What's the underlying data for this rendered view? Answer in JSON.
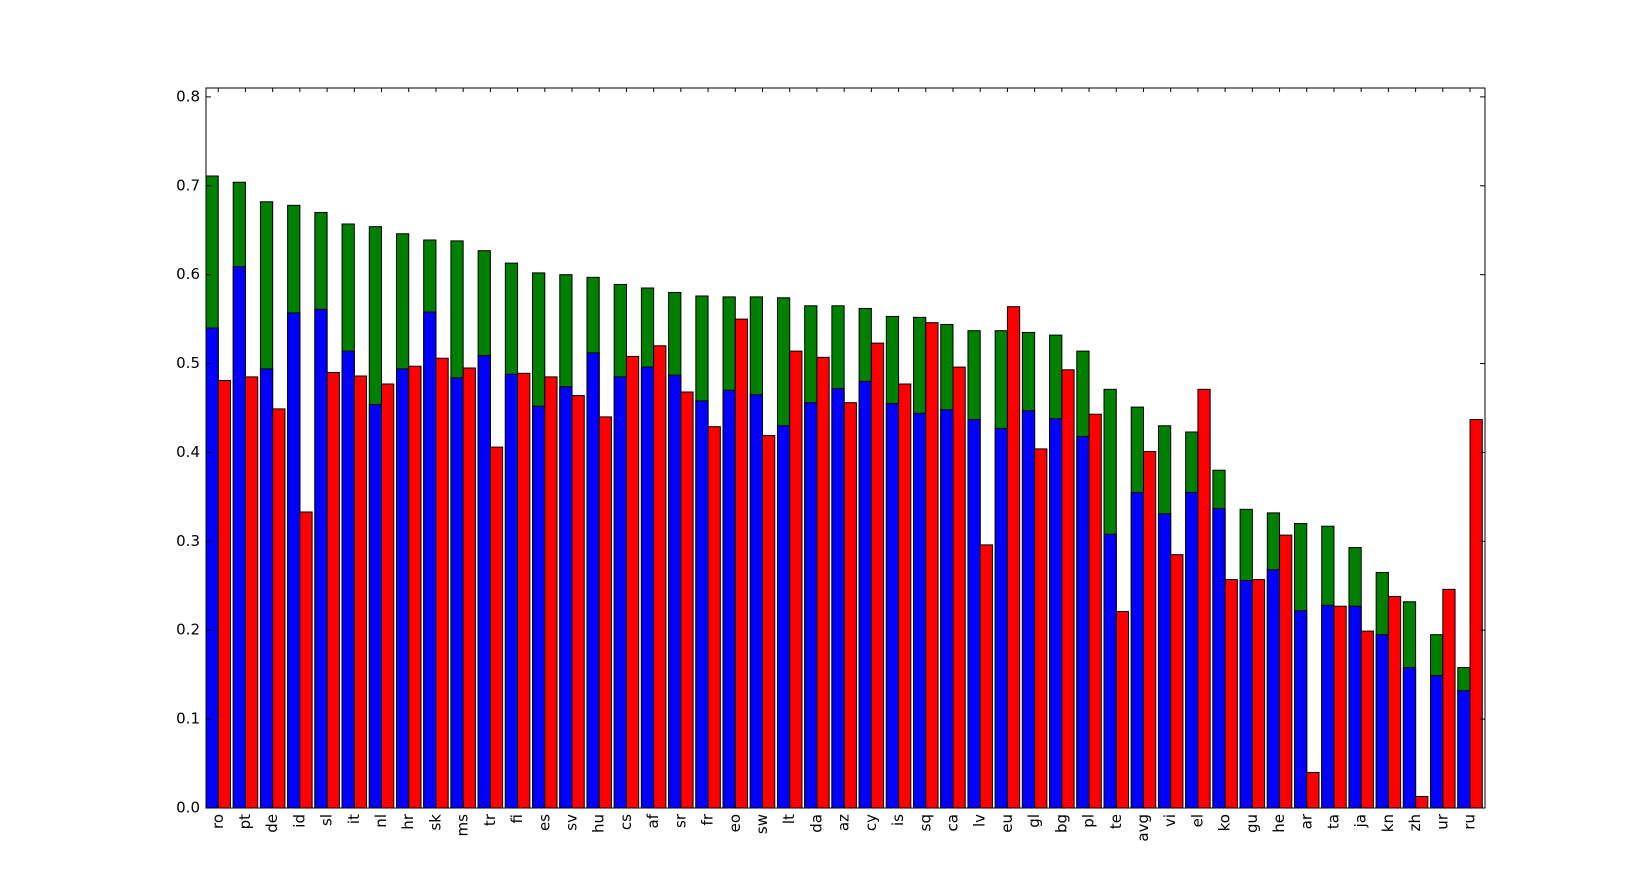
{
  "chart_data": {
    "type": "bar",
    "title": "",
    "xlabel": "",
    "ylabel": "",
    "ylim": [
      0.0,
      0.81
    ],
    "yticks": [
      "0.0",
      "0.1",
      "0.2",
      "0.3",
      "0.4",
      "0.5",
      "0.6",
      "0.7",
      "0.8"
    ],
    "grid": false,
    "legend": "none",
    "categories": [
      "ro",
      "pt",
      "de",
      "id",
      "sl",
      "it",
      "nl",
      "hr",
      "sk",
      "ms",
      "tr",
      "fi",
      "es",
      "sv",
      "hu",
      "cs",
      "af",
      "sr",
      "fr",
      "eo",
      "sw",
      "lt",
      "da",
      "az",
      "cy",
      "is",
      "sq",
      "ca",
      "lv",
      "eu",
      "gl",
      "bg",
      "pl",
      "te",
      "avg",
      "vi",
      "el",
      "ko",
      "gu",
      "he",
      "ar",
      "ta",
      "ja",
      "kn",
      "zh",
      "ur",
      "ru"
    ],
    "series": [
      {
        "color": "#008000",
        "values": [
          0.711,
          0.704,
          0.682,
          0.678,
          0.67,
          0.657,
          0.654,
          0.646,
          0.639,
          0.638,
          0.627,
          0.613,
          0.602,
          0.6,
          0.597,
          0.589,
          0.585,
          0.58,
          0.576,
          0.575,
          0.575,
          0.574,
          0.565,
          0.565,
          0.562,
          0.553,
          0.552,
          0.544,
          0.537,
          0.537,
          0.535,
          0.532,
          0.514,
          0.471,
          0.451,
          0.43,
          0.423,
          0.38,
          0.336,
          0.332,
          0.32,
          0.317,
          0.293,
          0.265,
          0.232,
          0.195,
          0.158
        ]
      },
      {
        "color": "#0000ff",
        "values": [
          0.54,
          0.609,
          0.494,
          0.557,
          0.561,
          0.514,
          0.454,
          0.494,
          0.558,
          0.484,
          0.509,
          0.488,
          0.452,
          0.474,
          0.512,
          0.485,
          0.496,
          0.487,
          0.458,
          0.47,
          0.465,
          0.43,
          0.456,
          0.472,
          0.48,
          0.455,
          0.444,
          0.448,
          0.437,
          0.427,
          0.447,
          0.438,
          0.418,
          0.308,
          0.355,
          0.331,
          0.355,
          0.337,
          0.256,
          0.268,
          0.222,
          0.228,
          0.227,
          0.195,
          0.158,
          0.149,
          0.132
        ]
      },
      {
        "color": "#ff0000",
        "values": [
          0.481,
          0.485,
          0.449,
          0.333,
          0.49,
          0.486,
          0.477,
          0.497,
          0.506,
          0.495,
          0.406,
          0.489,
          0.485,
          0.464,
          0.44,
          0.508,
          0.52,
          0.468,
          0.429,
          0.55,
          0.419,
          0.514,
          0.507,
          0.456,
          0.523,
          0.477,
          0.546,
          0.496,
          0.296,
          0.564,
          0.404,
          0.493,
          0.443,
          0.221,
          0.401,
          0.285,
          0.471,
          0.257,
          0.257,
          0.307,
          0.04,
          0.227,
          0.199,
          0.238,
          0.013,
          0.246,
          0.437
        ]
      }
    ]
  }
}
